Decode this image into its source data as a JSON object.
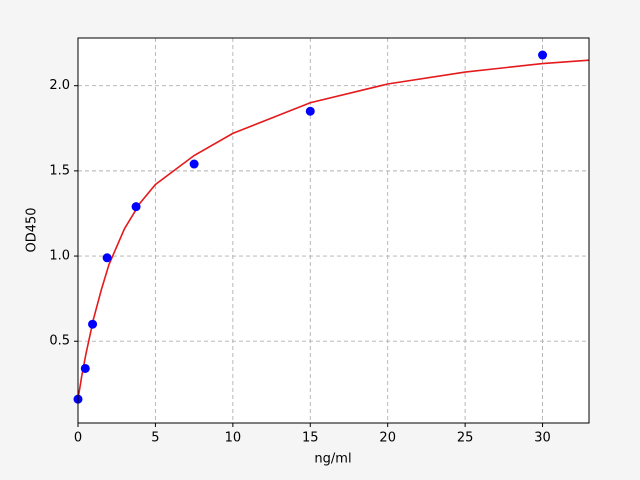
{
  "chart_data": {
    "type": "scatter",
    "x_label": "ng/ml",
    "y_label": "OD450",
    "xlim": [
      0,
      33
    ],
    "ylim": [
      0.02,
      2.28
    ],
    "xticks": [
      0,
      5,
      10,
      15,
      20,
      25,
      30
    ],
    "yticks": [
      0.5,
      {
        "value": 1.0,
        "label": "1.0"
      },
      1.5,
      {
        "value": 2.0,
        "label": "2.0"
      }
    ],
    "grid": true,
    "series": [
      {
        "type": "scatter",
        "color": "#0000ff",
        "x": [
          0,
          0.47,
          0.94,
          1.88,
          3.75,
          7.5,
          15,
          30
        ],
        "values": [
          0.16,
          0.34,
          0.6,
          0.99,
          1.29,
          1.54,
          1.85,
          2.18
        ]
      },
      {
        "type": "line",
        "color": "#e41a1c",
        "x": [
          0,
          0.25,
          0.5,
          1,
          1.5,
          2,
          3,
          4,
          5,
          7.5,
          10,
          15,
          20,
          25,
          30,
          33
        ],
        "values": [
          0.16,
          0.3,
          0.42,
          0.63,
          0.8,
          0.95,
          1.16,
          1.31,
          1.42,
          1.59,
          1.72,
          1.9,
          2.01,
          2.08,
          2.13,
          2.15
        ]
      }
    ]
  }
}
